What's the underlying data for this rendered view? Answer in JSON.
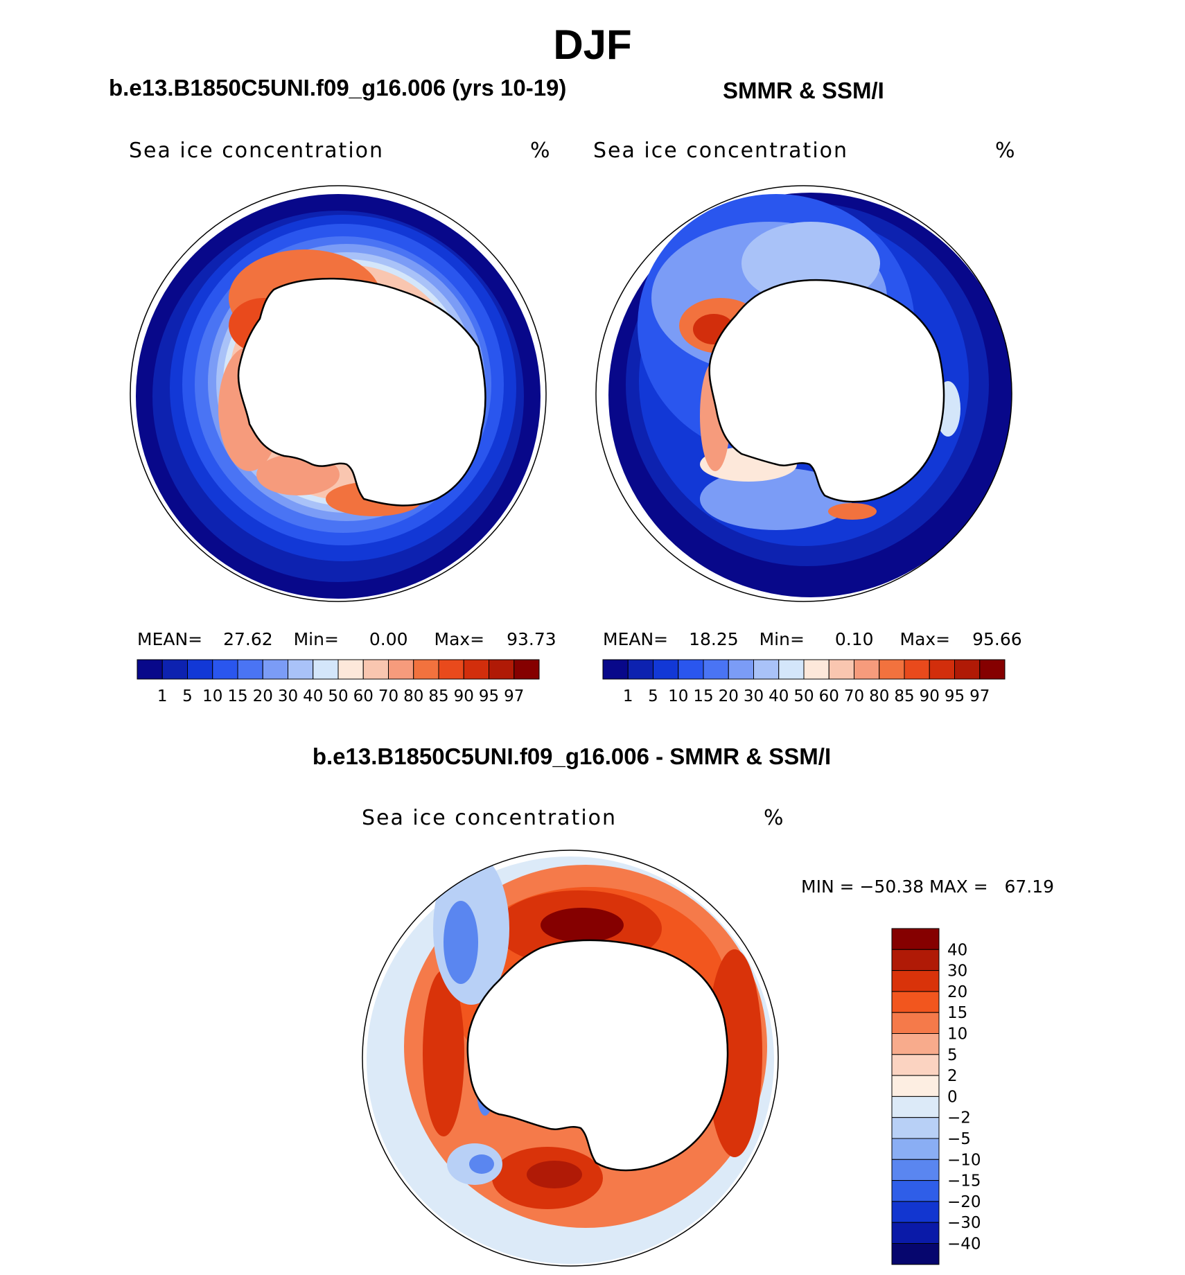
{
  "figure": {
    "season": "DJF"
  },
  "panels": [
    {
      "title": "b.e13.B1850C5UNI.f09_g16.006 (yrs 10-19)",
      "variable": "Sea ice concentration",
      "units": "%",
      "stats": {
        "mean_label": "MEAN=",
        "mean": "27.62",
        "min_label": "Min=",
        "min": "0.00",
        "max_label": "Max=",
        "max": "93.73"
      }
    },
    {
      "title": "SMMR & SSM/I",
      "variable": "Sea ice concentration",
      "units": "%",
      "stats": {
        "mean_label": "MEAN=",
        "mean": "18.25",
        "min_label": "Min=",
        "min": "0.10",
        "max_label": "Max=",
        "max": "95.66"
      }
    },
    {
      "title": "b.e13.B1850C5UNI.f09_g16.006 - SMMR & SSM/I",
      "variable": "Sea ice concentration",
      "units": "%",
      "stats_text": "MIN = −50.38 MAX =   67.19"
    }
  ],
  "colorbars": {
    "concentration": {
      "levels": [
        "1",
        "5",
        "10",
        "15",
        "20",
        "30",
        "40",
        "50",
        "60",
        "70",
        "80",
        "85",
        "90",
        "95",
        "97"
      ],
      "colors": [
        "#08088a",
        "#0d22b0",
        "#1238d6",
        "#2a56ee",
        "#4a74f4",
        "#7b9cf6",
        "#a9c2f8",
        "#d4e6fa",
        "#fde8da",
        "#f9c6b0",
        "#f69b7c",
        "#f2723e",
        "#e94a1c",
        "#d22e0c",
        "#b01a06",
        "#850000"
      ]
    },
    "difference": {
      "levels": [
        "40",
        "30",
        "20",
        "15",
        "10",
        "5",
        "2",
        "0",
        "−2",
        "−5",
        "−10",
        "−15",
        "−20",
        "−30",
        "−40"
      ],
      "colors": [
        "#850000",
        "#b01a06",
        "#d9330a",
        "#f2561e",
        "#f57a4a",
        "#f8ab8c",
        "#fbd3c1",
        "#fdeee2",
        "#dceaf8",
        "#b8d0f6",
        "#8aaef4",
        "#5a86f0",
        "#2f5ee8",
        "#1236d0",
        "#0a1aa8",
        "#06066e"
      ]
    }
  }
}
